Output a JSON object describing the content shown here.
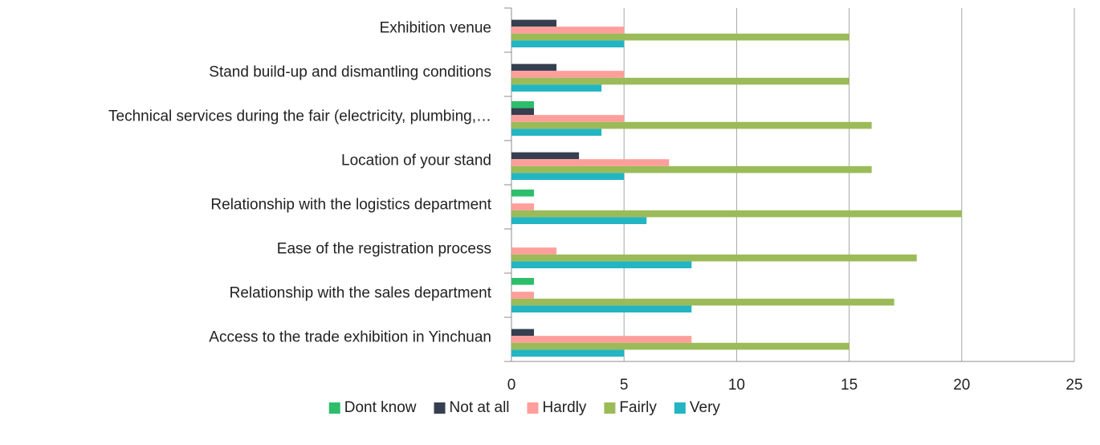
{
  "chart_data": {
    "type": "bar",
    "orientation": "horizontal",
    "categories": [
      "Exhibition venue",
      "Stand build-up and dismantling conditions",
      "Technical services during the fair (electricity, plumbing,…",
      "Location of your stand",
      "Relationship with the logistics department",
      "Ease of the registration process",
      "Relationship with the sales department",
      "Access to the trade exhibition in Yinchuan"
    ],
    "series": [
      {
        "name": "Dont know",
        "color": "#2dbe6c",
        "values": [
          0,
          0,
          1,
          0,
          1,
          0,
          1,
          0
        ]
      },
      {
        "name": "Not at all",
        "color": "#353f4f",
        "values": [
          2,
          2,
          1,
          3,
          0,
          0,
          0,
          1
        ]
      },
      {
        "name": "Hardly",
        "color": "#ff9e9b",
        "values": [
          5,
          5,
          5,
          7,
          1,
          2,
          1,
          8
        ]
      },
      {
        "name": "Fairly",
        "color": "#9bbb59",
        "values": [
          15,
          15,
          16,
          16,
          20,
          18,
          17,
          15
        ]
      },
      {
        "name": "Very",
        "color": "#23b5c3",
        "values": [
          5,
          4,
          4,
          5,
          6,
          8,
          8,
          5
        ]
      }
    ],
    "xlim": [
      0,
      25
    ],
    "xticks": [
      0,
      5,
      10,
      15,
      20,
      25
    ],
    "grid": true,
    "legend": "bottom"
  }
}
